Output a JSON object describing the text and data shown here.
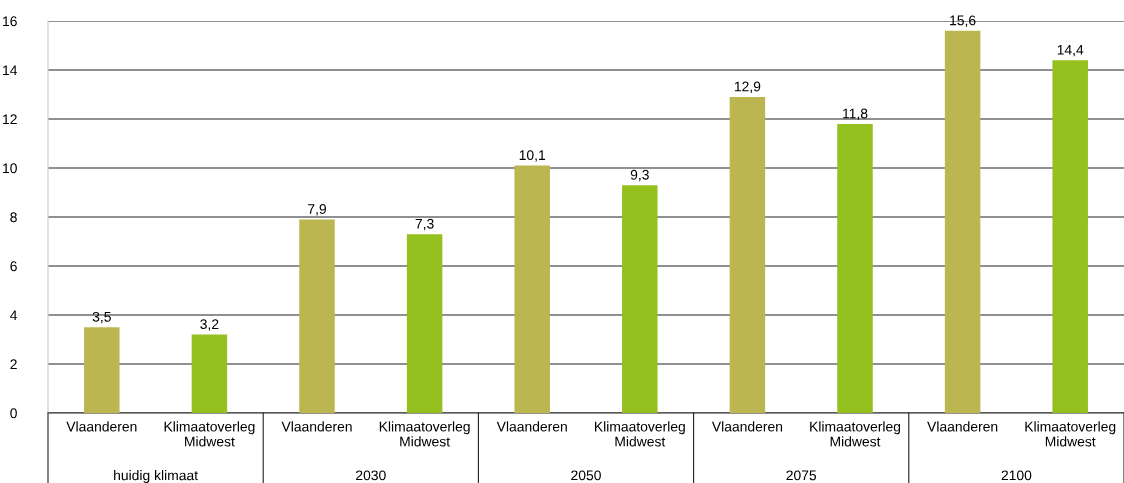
{
  "chart_data": {
    "type": "bar",
    "categories": [
      "Vlaanderen",
      "Klimaatoverleg\nMidwest",
      "Vlaanderen",
      "Klimaatoverleg\nMidwest",
      "Vlaanderen",
      "Klimaatoverleg\nMidwest",
      "Vlaanderen",
      "Klimaatoverleg\nMidwest",
      "Vlaanderen",
      "Klimaatoverleg\nMidwest"
    ],
    "values": [
      3.5,
      3.2,
      7.9,
      7.3,
      10.1,
      9.3,
      12.9,
      11.8,
      15.6,
      14.4
    ],
    "value_labels": [
      "3,5",
      "3,2",
      "7,9",
      "7,3",
      "10,1",
      "9,3",
      "12,9",
      "11,8",
      "15,6",
      "14,4"
    ],
    "colors": [
      "#bcb651",
      "#95c11f",
      "#bcb651",
      "#95c11f",
      "#bcb651",
      "#95c11f",
      "#bcb651",
      "#95c11f",
      "#bcb651",
      "#95c11f"
    ],
    "annotations": [
      "huidig klimaat",
      "2030",
      "2050",
      "2075",
      "2100"
    ],
    "ylim": [
      0,
      16
    ],
    "yticks": [
      0,
      2,
      4,
      6,
      8,
      10,
      12,
      14,
      16
    ],
    "grid": "y",
    "legend": false
  }
}
